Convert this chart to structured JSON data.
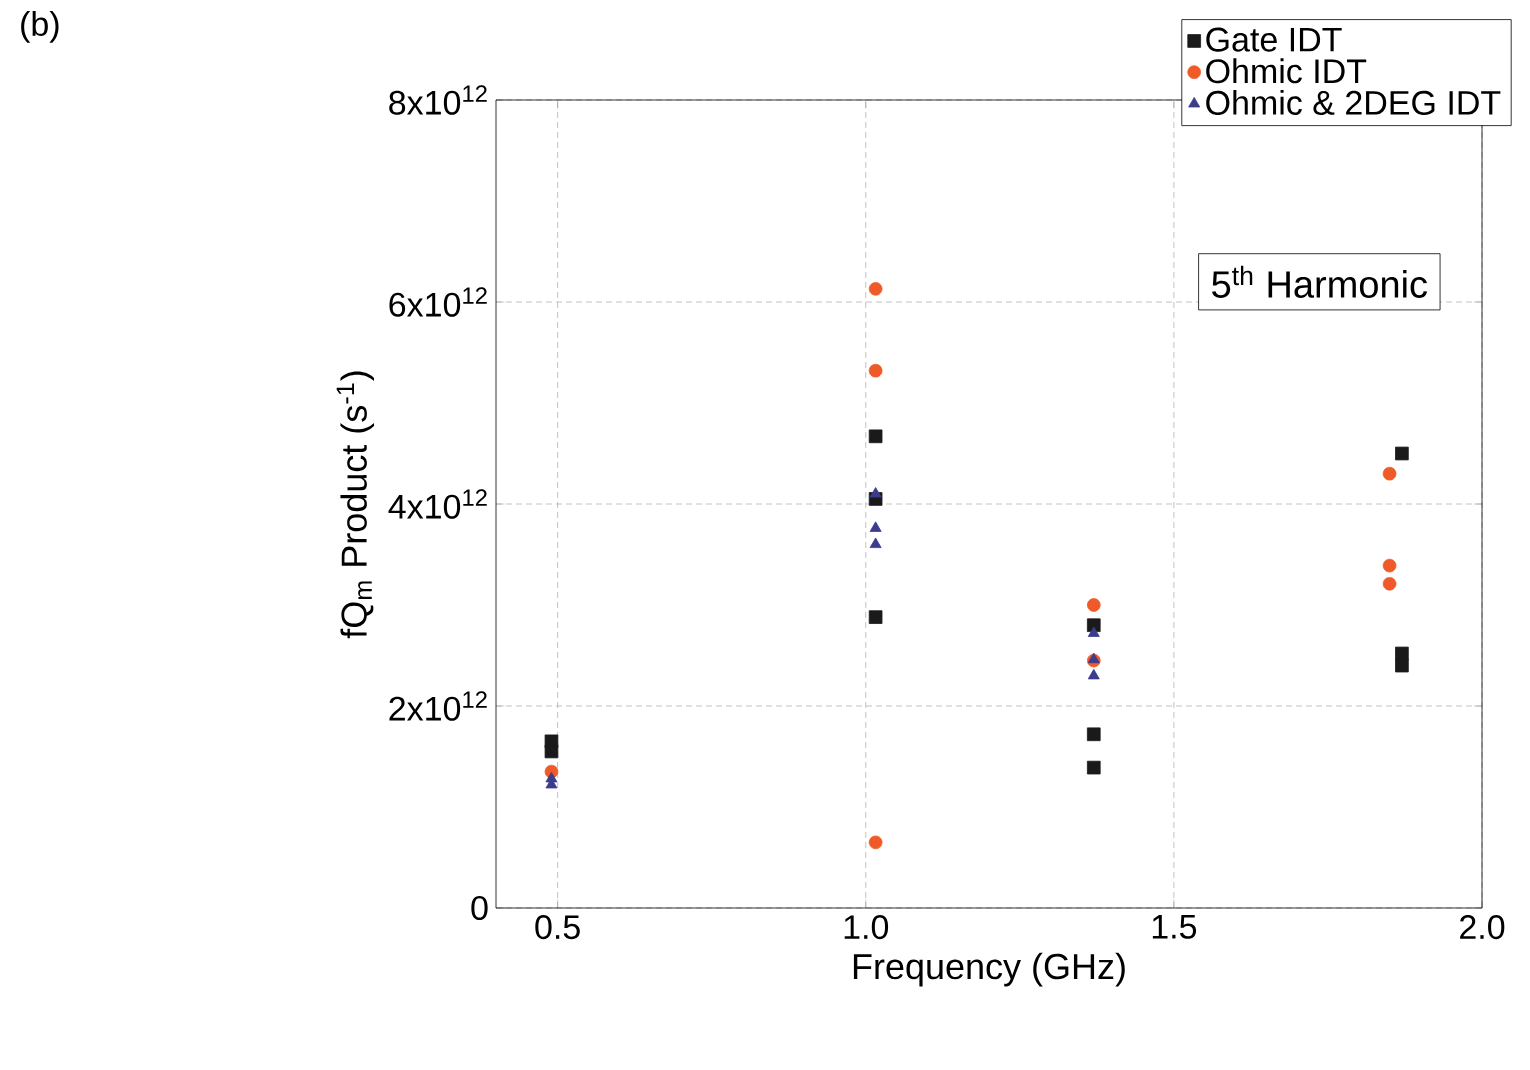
{
  "chart_data": {
    "type": "scatter",
    "xlabel": "Frequency (GHz)",
    "ylabel": "fQ$_{m}$ Product (s$^{-1}$)",
    "xlim": [
      0.4,
      2.0
    ],
    "ylim": [
      0,
      8000000000000.0
    ],
    "xticks": [
      0.5,
      {
        "value": 1,
        "label": "1.0"
      },
      1.5,
      {
        "value": 2,
        "label": "2.0"
      }
    ],
    "yticks": [
      0,
      {
        "value": 2000000000000.0,
        "label": "2x10$^{12}$"
      },
      {
        "value": 4000000000000.0,
        "label": "4x10$^{12}$"
      },
      {
        "value": 6000000000000.0,
        "label": "6x10$^{12}$"
      },
      {
        "value": 8000000000000.0,
        "label": "8x10$^{12}$"
      }
    ],
    "grid": true,
    "legend": "top right",
    "annotations": [
      "(b)",
      "5$^{th}$ Harmonic"
    ],
    "series": [
      {
        "name": "Gate IDT",
        "color": "#1a1a1a",
        "marker": "square",
        "x": [
          0.49,
          0.49,
          1.016,
          1.016,
          1.016,
          1.37,
          1.37,
          1.37,
          1.87,
          1.87,
          1.87
        ],
        "values": [
          1650000000000.0,
          1550000000000.0,
          4670000000000.0,
          4050000000000.0,
          2880000000000.0,
          2800000000000.0,
          1720000000000.0,
          1390000000000.0,
          4500000000000.0,
          2520000000000.0,
          2400000000000.0
        ]
      },
      {
        "name": "Ohmic IDT",
        "color": "#f05a28",
        "marker": "circle",
        "x": [
          0.49,
          1.016,
          1.016,
          1.016,
          1.37,
          1.37,
          1.85,
          1.85,
          1.85
        ],
        "values": [
          1350000000000.0,
          6130000000000.0,
          5320000000000.0,
          650000000000.0,
          3000000000000.0,
          2450000000000.0,
          4300000000000.0,
          3390000000000.0,
          3210000000000.0
        ]
      },
      {
        "name": "Ohmic & 2DEG IDT",
        "color": "#3c3c8c",
        "marker": "triangle",
        "x": [
          0.49,
          0.49,
          1.016,
          1.016,
          1.016,
          1.37,
          1.37,
          1.37
        ],
        "values": [
          1280000000000.0,
          1220000000000.0,
          4100000000000.0,
          3760000000000.0,
          3600000000000.0,
          2720000000000.0,
          2460000000000.0,
          2300000000000.0
        ]
      }
    ]
  }
}
